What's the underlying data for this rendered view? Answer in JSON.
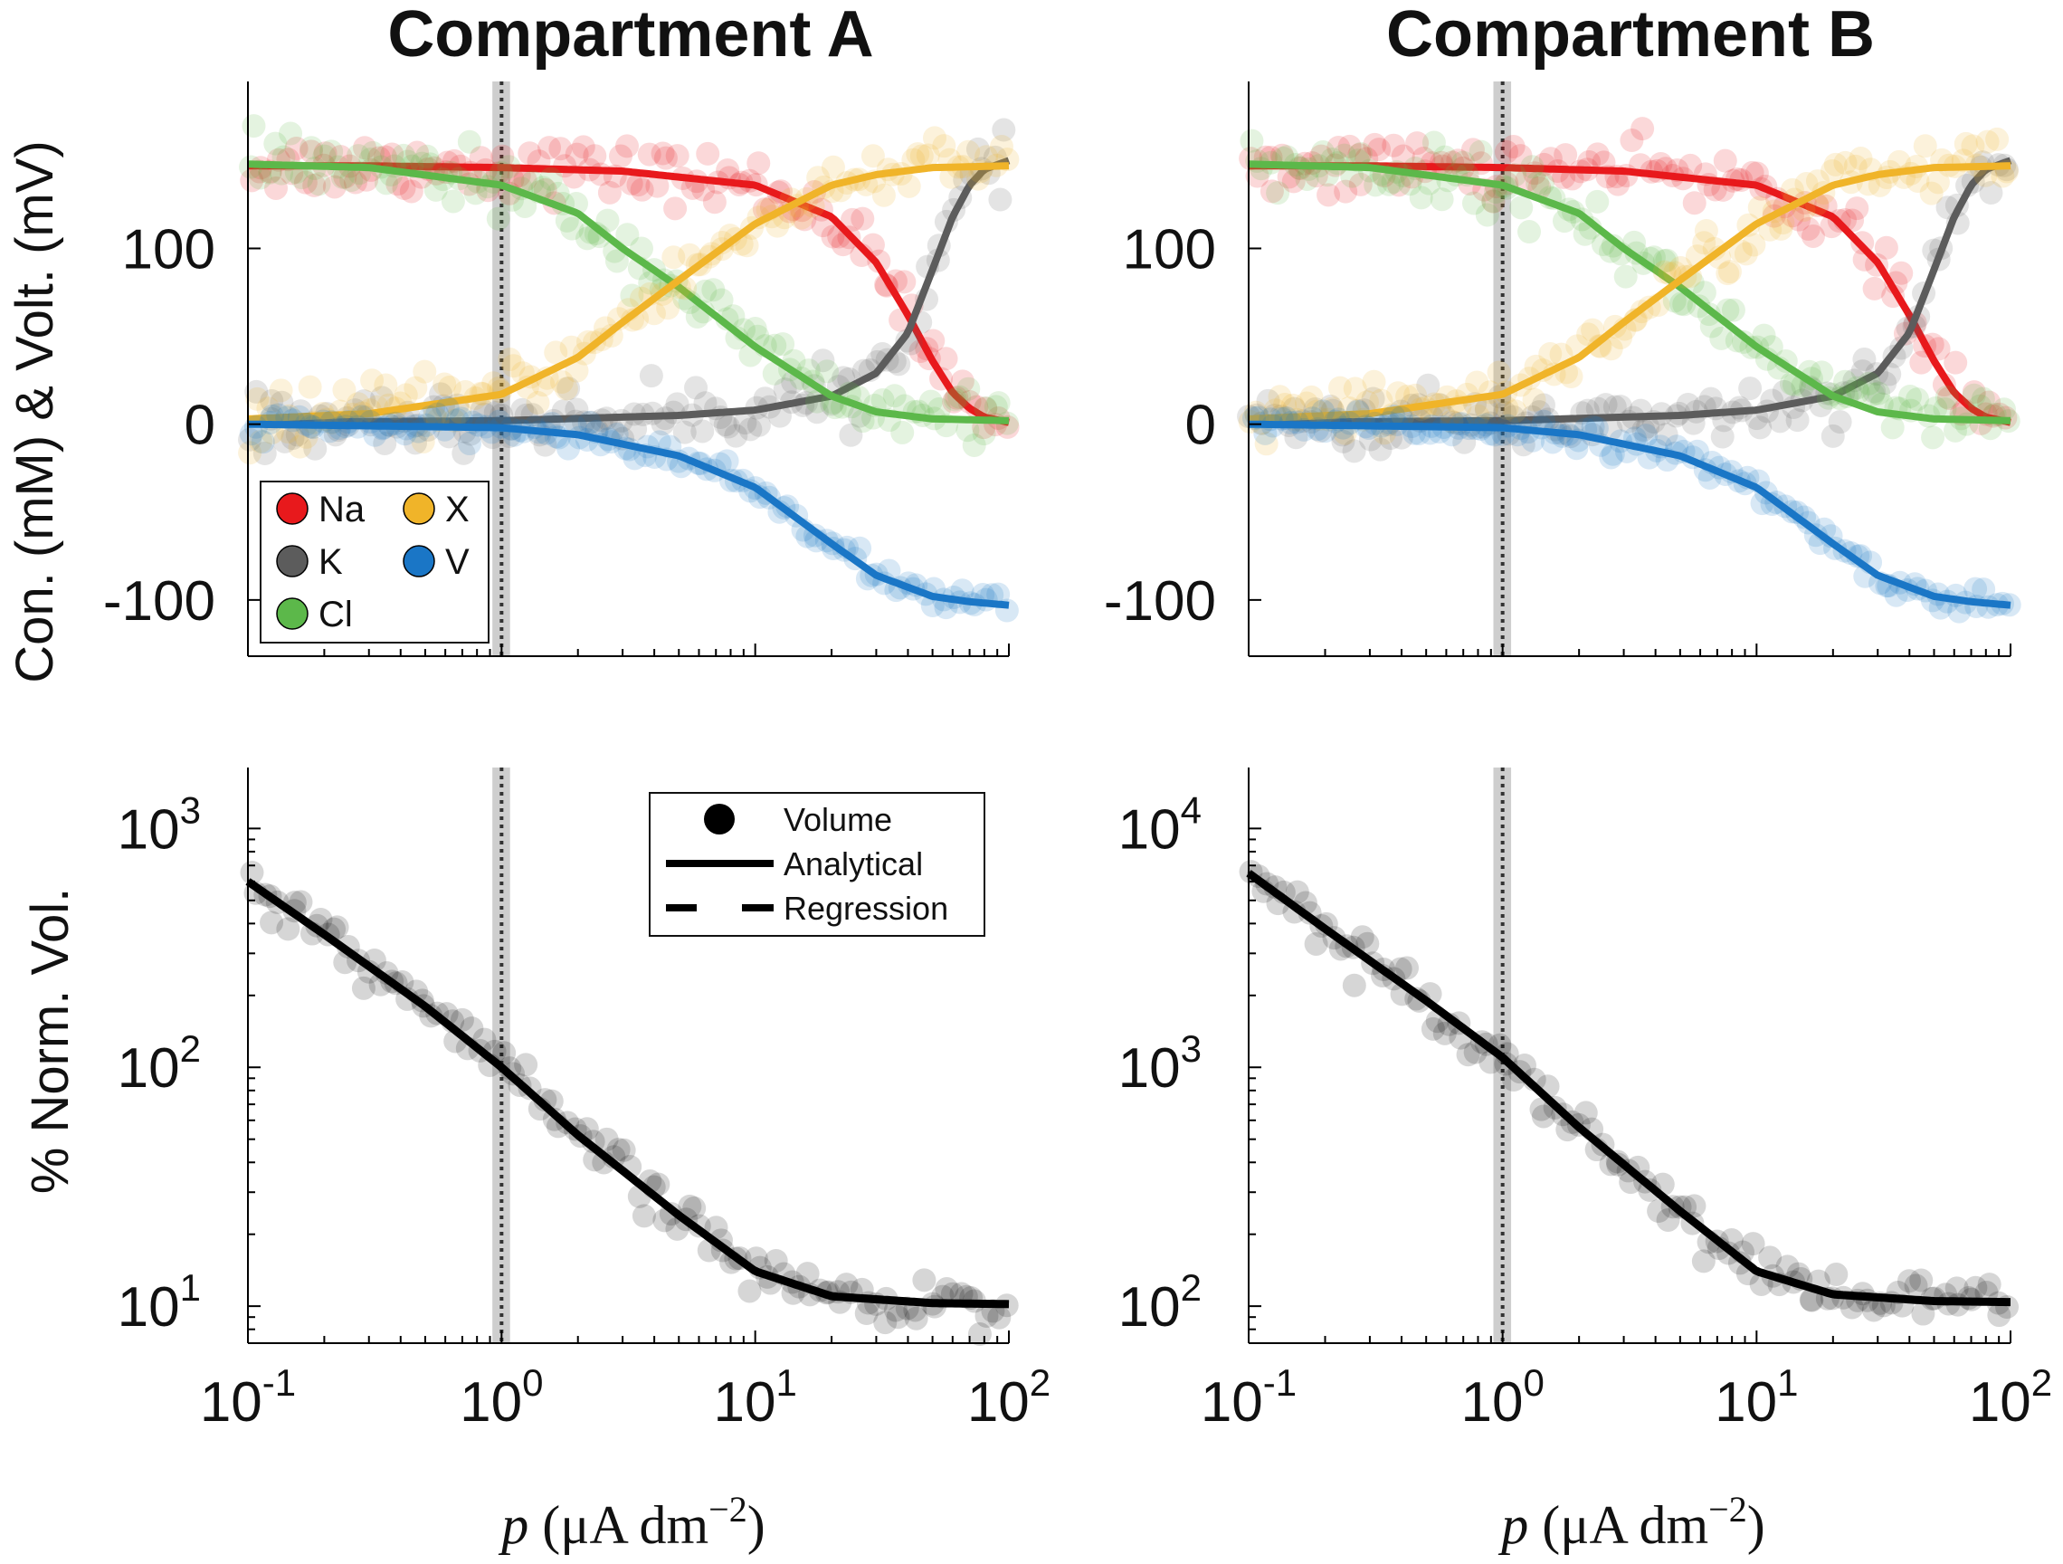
{
  "colors": {
    "Na": "#e8191c",
    "K": "#5c5c5c",
    "Cl": "#5cb84a",
    "X": "#f0b429",
    "V": "#1a76c6",
    "volume": "#000000",
    "reference_band": "#bdbdbd"
  },
  "chart_data": [
    {
      "type": "scatter",
      "id": "compartment-a-concentrations",
      "title": "Compartment A",
      "xlabel": "p (μA dm⁻²)",
      "ylabel": "Con. (mM) & Volt. (mV)",
      "xscale": "log",
      "xlim": [
        0.1,
        100
      ],
      "ylim": [
        -132,
        195
      ],
      "yticks": [
        -100,
        0,
        100
      ],
      "ytick_labels": [
        "-100",
        "0",
        "100"
      ],
      "reference_line_x": 1,
      "reference_band_x": [
        0.92,
        1.08
      ],
      "legend_position": "lower-left",
      "legend": [
        "Na",
        "K",
        "Cl",
        "X",
        "V"
      ],
      "series": [
        {
          "name": "Na",
          "x": [
            0.1,
            0.3,
            1,
            3,
            10,
            20,
            30,
            40,
            50,
            60,
            70,
            80,
            100
          ],
          "values": [
            147,
            147,
            146,
            144,
            136,
            118,
            92,
            62,
            36,
            18,
            9,
            4,
            1
          ]
        },
        {
          "name": "K",
          "x": [
            0.1,
            1,
            5,
            10,
            20,
            30,
            40,
            50,
            60,
            70,
            80,
            100
          ],
          "values": [
            1,
            2,
            5,
            8,
            16,
            29,
            52,
            88,
            118,
            136,
            145,
            150
          ]
        },
        {
          "name": "Cl",
          "x": [
            0.1,
            0.3,
            1,
            2,
            3,
            5,
            10,
            20,
            30,
            50,
            100
          ],
          "values": [
            148,
            146,
            136,
            120,
            100,
            78,
            44,
            16,
            7,
            3,
            2
          ]
        },
        {
          "name": "X",
          "x": [
            0.1,
            0.3,
            1,
            2,
            3,
            5,
            10,
            20,
            30,
            50,
            100
          ],
          "values": [
            3,
            6,
            17,
            38,
            58,
            82,
            114,
            136,
            142,
            146,
            147
          ]
        },
        {
          "name": "V",
          "x": [
            0.1,
            1,
            2,
            5,
            10,
            20,
            30,
            50,
            70,
            100
          ],
          "values": [
            0,
            -2,
            -6,
            -18,
            -36,
            -68,
            -86,
            -98,
            -101,
            -103
          ]
        }
      ]
    },
    {
      "type": "scatter",
      "id": "compartment-b-concentrations",
      "title": "Compartment B",
      "xlabel": "p (μA dm⁻²)",
      "ylabel": "",
      "xscale": "log",
      "xlim": [
        0.1,
        100
      ],
      "ylim": [
        -132,
        195
      ],
      "yticks": [
        -100,
        0,
        100
      ],
      "ytick_labels": [
        "-100",
        "0",
        "100"
      ],
      "reference_line_x": 1,
      "reference_band_x": [
        0.92,
        1.08
      ],
      "series": [
        {
          "name": "Na",
          "x": [
            0.1,
            0.3,
            1,
            3,
            10,
            20,
            30,
            40,
            50,
            60,
            70,
            80,
            100
          ],
          "values": [
            147,
            147,
            146,
            144,
            136,
            118,
            92,
            62,
            36,
            18,
            9,
            4,
            1
          ]
        },
        {
          "name": "K",
          "x": [
            0.1,
            1,
            5,
            10,
            20,
            30,
            40,
            50,
            60,
            70,
            80,
            100
          ],
          "values": [
            1,
            2,
            5,
            8,
            16,
            29,
            52,
            88,
            118,
            136,
            145,
            150
          ]
        },
        {
          "name": "Cl",
          "x": [
            0.1,
            0.3,
            1,
            2,
            3,
            5,
            10,
            20,
            30,
            50,
            100
          ],
          "values": [
            148,
            146,
            136,
            120,
            100,
            78,
            44,
            16,
            7,
            3,
            2
          ]
        },
        {
          "name": "X",
          "x": [
            0.1,
            0.3,
            1,
            2,
            3,
            5,
            10,
            20,
            30,
            50,
            100
          ],
          "values": [
            3,
            6,
            17,
            38,
            58,
            82,
            114,
            136,
            142,
            146,
            147
          ]
        },
        {
          "name": "V",
          "x": [
            0.1,
            1,
            2,
            5,
            10,
            20,
            30,
            50,
            70,
            100
          ],
          "values": [
            0,
            -2,
            -6,
            -18,
            -36,
            -68,
            -86,
            -98,
            -101,
            -103
          ]
        }
      ]
    },
    {
      "type": "scatter",
      "id": "compartment-a-volume",
      "title": "",
      "xlabel": "p (μA dm⁻²)",
      "ylabel": "% Norm. Vol.",
      "xscale": "log",
      "yscale": "log",
      "xlim": [
        0.1,
        100
      ],
      "ylim": [
        7,
        1800
      ],
      "yticks": [
        10,
        100,
        1000
      ],
      "ytick_labels": [
        [
          "10",
          "1"
        ],
        [
          "10",
          "2"
        ],
        [
          "10",
          "3"
        ]
      ],
      "xticks": [
        0.1,
        1,
        10,
        100
      ],
      "xtick_labels": [
        [
          "10",
          "-1"
        ],
        [
          "10",
          "0"
        ],
        [
          "10",
          "1"
        ],
        [
          "10",
          "2"
        ]
      ],
      "reference_line_x": 1,
      "reference_band_x": [
        0.92,
        1.08
      ],
      "legend_position": "top-right",
      "legend": [
        "Volume",
        "Analytical",
        "Regression"
      ],
      "series": [
        {
          "name": "Volume",
          "x": [
            0.1,
            0.2,
            0.5,
            1,
            2,
            5,
            10,
            20,
            50,
            100
          ],
          "values": [
            600,
            360,
            180,
            100,
            52,
            24,
            14,
            11,
            10.3,
            10.2
          ]
        }
      ]
    },
    {
      "type": "scatter",
      "id": "compartment-b-volume",
      "title": "",
      "xlabel": "p (μA dm⁻²)",
      "ylabel": "",
      "xscale": "log",
      "yscale": "log",
      "xlim": [
        0.1,
        100
      ],
      "ylim": [
        70,
        18000
      ],
      "yticks": [
        100,
        1000,
        10000
      ],
      "ytick_labels": [
        [
          "10",
          "2"
        ],
        [
          "10",
          "3"
        ],
        [
          "10",
          "4"
        ]
      ],
      "xticks": [
        0.1,
        1,
        10,
        100
      ],
      "xtick_labels": [
        [
          "10",
          "-1"
        ],
        [
          "10",
          "0"
        ],
        [
          "10",
          "1"
        ],
        [
          "10",
          "2"
        ]
      ],
      "reference_line_x": 1,
      "reference_band_x": [
        0.92,
        1.08
      ],
      "series": [
        {
          "name": "Volume",
          "x": [
            0.1,
            0.2,
            0.5,
            1,
            2,
            5,
            10,
            20,
            50,
            100
          ],
          "values": [
            6500,
            3800,
            1900,
            1100,
            560,
            250,
            140,
            112,
            105,
            104
          ]
        }
      ]
    }
  ],
  "labels": {
    "title_a": "Compartment A",
    "title_b": "Compartment B",
    "ylabel_top": "Con. (mM) & Volt. (mV)",
    "ylabel_bottom": "% Norm. Vol.",
    "xlabel_p": "p",
    "xlabel_units": " (μA dm",
    "xlabel_exp": "−2",
    "xlabel_close": ")"
  },
  "legend_top": [
    {
      "key": "Na",
      "label": "Na"
    },
    {
      "key": "X",
      "label": "X"
    },
    {
      "key": "K",
      "label": "K"
    },
    {
      "key": "V",
      "label": "V"
    },
    {
      "key": "Cl",
      "label": "Cl"
    }
  ],
  "legend_bottom": {
    "volume": "Volume",
    "analytical": "Analytical",
    "regression": "Regression"
  }
}
